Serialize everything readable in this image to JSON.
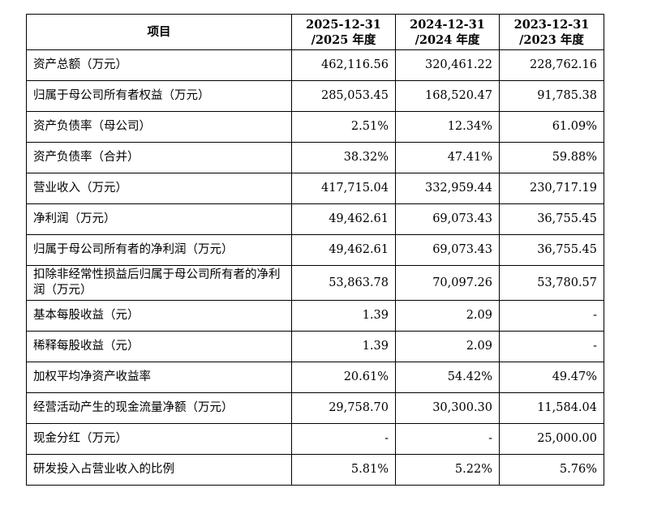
{
  "header": {
    "item": "项目",
    "col1": "2025-12-31\n/2025 年度",
    "col2": "2024-12-31\n/2024 年度",
    "col3": "2023-12-31\n/2023 年度"
  },
  "rows": [
    {
      "label": "资产总额（万元）",
      "v1": "462,116.56",
      "v2": "320,461.22",
      "v3": "228,762.16"
    },
    {
      "label": "归属于母公司所有者权益（万元）",
      "v1": "285,053.45",
      "v2": "168,520.47",
      "v3": "91,785.38"
    },
    {
      "label": "资产负债率（母公司）",
      "v1": "2.51%",
      "v2": "12.34%",
      "v3": "61.09%"
    },
    {
      "label": "资产负债率（合并）",
      "v1": "38.32%",
      "v2": "47.41%",
      "v3": "59.88%"
    },
    {
      "label": "营业收入（万元）",
      "v1": "417,715.04",
      "v2": "332,959.44",
      "v3": "230,717.19"
    },
    {
      "label": "净利润（万元）",
      "v1": "49,462.61",
      "v2": "69,073.43",
      "v3": "36,755.45"
    },
    {
      "label": "归属于母公司所有者的净利润（万元）",
      "v1": "49,462.61",
      "v2": "69,073.43",
      "v3": "36,755.45"
    },
    {
      "label": "扣除非经常性损益后归属于母公司所有者的净利润（万元）",
      "v1": "53,863.78",
      "v2": "70,097.26",
      "v3": "53,780.57"
    },
    {
      "label": "基本每股收益（元）",
      "v1": "1.39",
      "v2": "2.09",
      "v3": "-"
    },
    {
      "label": "稀释每股收益（元）",
      "v1": "1.39",
      "v2": "2.09",
      "v3": "-"
    },
    {
      "label": "加权平均净资产收益率",
      "v1": "20.61%",
      "v2": "54.42%",
      "v3": "49.47%"
    },
    {
      "label": "经营活动产生的现金流量净额（万元）",
      "v1": "29,758.70",
      "v2": "30,300.30",
      "v3": "11,584.04"
    },
    {
      "label": "现金分红（万元）",
      "v1": "-",
      "v2": "-",
      "v3": "25,000.00"
    },
    {
      "label": "研发投入占营业收入的比例",
      "v1": "5.81%",
      "v2": "5.22%",
      "v3": "5.76%"
    }
  ]
}
